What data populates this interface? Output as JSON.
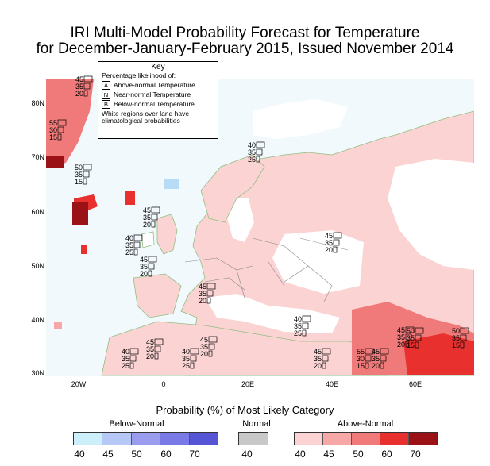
{
  "title": {
    "line1": "IRI Multi-Model Probability Forecast for Temperature",
    "line2": "for December-January-February 2015, Issued November 2014"
  },
  "map": {
    "lat_labels": [
      "80N",
      "70N",
      "60N",
      "50N",
      "40N",
      "30N"
    ],
    "lon_labels": [
      "20W",
      "0",
      "20E",
      "40E",
      "60E"
    ],
    "colors": {
      "ocean": "#f1f9fd",
      "land_default": "#ffffff",
      "above_40": "#fbd3d3",
      "above_45": "#f6a7a6",
      "above_50": "#f07a7a",
      "above_60": "#e8312e",
      "above_70": "#9a1116",
      "below_40": "#b7dbf4",
      "coastline": "#8fbf7f",
      "borders": "#888888"
    },
    "probability_stacks": [
      [
        "45",
        "35",
        "20"
      ],
      [
        "55",
        "30",
        "15"
      ],
      [
        "50",
        "35",
        "15"
      ],
      [
        "45",
        "35",
        "20"
      ],
      [
        "40",
        "35",
        "25"
      ],
      [
        "45",
        "35",
        "20"
      ],
      [
        "45",
        "35",
        "20"
      ],
      [
        "40",
        "35",
        "25"
      ],
      [
        "40",
        "35",
        "25"
      ],
      [
        "45",
        "35",
        "20"
      ],
      [
        "45",
        "35",
        "20"
      ],
      [
        "40",
        "35",
        "25"
      ],
      [
        "40",
        "35",
        "25"
      ],
      [
        "45",
        "35",
        "20"
      ],
      [
        "45",
        "35",
        "20"
      ],
      [
        "55",
        "30",
        "15"
      ],
      [
        "45",
        "35",
        "20"
      ],
      [
        "50",
        "35",
        "15"
      ],
      [
        "50",
        "35",
        "15"
      ],
      [
        "45",
        "35",
        "20"
      ]
    ]
  },
  "key": {
    "title": "Key",
    "subtitle": "Percentage likelihood of:",
    "rows": [
      {
        "letter": "A",
        "label": "Above-normal Temperature"
      },
      {
        "letter": "N",
        "label": "Near-normal Temperature"
      },
      {
        "letter": "B",
        "label": "Below-normal Temperature"
      }
    ],
    "note": "White regions over land have climatological probabilities"
  },
  "legend": {
    "title": "Probability (%) of Most Likely Category",
    "below": {
      "label": "Below-Normal",
      "ticks": [
        "40",
        "45",
        "50",
        "60",
        "70"
      ],
      "colors": [
        "#cdeffa",
        "#b6c8f5",
        "#9a9cee",
        "#7a7ae6",
        "#5555d6"
      ]
    },
    "normal": {
      "label": "Normal",
      "ticks": [
        "40"
      ],
      "colors": [
        "#c8c8c8"
      ]
    },
    "above": {
      "label": "Above-Normal",
      "ticks": [
        "40",
        "45",
        "50",
        "60",
        "70"
      ],
      "colors": [
        "#fbd3d3",
        "#f6a7a6",
        "#f07a7a",
        "#e8312e",
        "#9a1116"
      ]
    }
  }
}
